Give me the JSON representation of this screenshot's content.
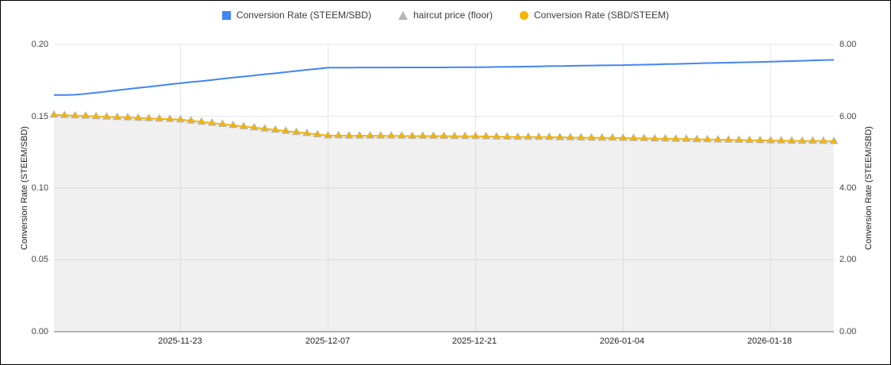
{
  "legend": {
    "items": [
      {
        "label": "Conversion Rate (STEEM/SBD)",
        "marker": "square-icon",
        "color": "#4285f4"
      },
      {
        "label": "haircut price (floor)",
        "marker": "triangle-icon",
        "color": "#b5b5b5"
      },
      {
        "label": "Conversion Rate (SBD/STEEM)",
        "marker": "circle-icon",
        "color": "#f4b400"
      }
    ]
  },
  "axes": {
    "left": {
      "title": "Conversion Rate (STEEM/SBD)",
      "ticks": [
        "0.20",
        "0.15",
        "0.10",
        "0.05",
        "0.00"
      ]
    },
    "right": {
      "title": "Conversion Rate (STEEM/SBD)",
      "ticks": [
        "8.00",
        "6.00",
        "4.00",
        "2.00",
        "0.00"
      ]
    },
    "x": {
      "ticks": [
        "2025-11-23",
        "2025-12-07",
        "2025-12-21",
        "2026-01-04",
        "2026-01-18"
      ]
    }
  },
  "colors": {
    "gridline": "#e6e6e6",
    "baseline": "#9e9e9e",
    "area_fill": "rgba(180,180,180,0.20)",
    "blue": "#4285f4",
    "gray": "#b5b5b5",
    "yellow": "#f4b400",
    "plot_bg": "#ffffff"
  },
  "chart_data": {
    "type": "line",
    "title": "",
    "xlabel": "",
    "legend_position": "top",
    "grid": true,
    "left_ylim": [
      0,
      0.2
    ],
    "right_ylim": [
      0,
      8.0
    ],
    "x_gridline_dates": [
      "2025-11-23",
      "2025-12-07",
      "2025-12-21",
      "2026-01-04",
      "2026-01-18"
    ],
    "x": [
      "2025-11-11",
      "2025-11-12",
      "2025-11-13",
      "2025-11-14",
      "2025-11-15",
      "2025-11-16",
      "2025-11-17",
      "2025-11-18",
      "2025-11-19",
      "2025-11-20",
      "2025-11-21",
      "2025-11-22",
      "2025-11-23",
      "2025-11-24",
      "2025-11-25",
      "2025-11-26",
      "2025-11-27",
      "2025-11-28",
      "2025-11-29",
      "2025-11-30",
      "2025-12-01",
      "2025-12-02",
      "2025-12-03",
      "2025-12-04",
      "2025-12-05",
      "2025-12-06",
      "2025-12-07",
      "2025-12-08",
      "2025-12-09",
      "2025-12-10",
      "2025-12-11",
      "2025-12-12",
      "2025-12-13",
      "2025-12-14",
      "2025-12-15",
      "2025-12-16",
      "2025-12-17",
      "2025-12-18",
      "2025-12-19",
      "2025-12-20",
      "2025-12-21",
      "2025-12-22",
      "2025-12-23",
      "2025-12-24",
      "2025-12-25",
      "2025-12-26",
      "2025-12-27",
      "2025-12-28",
      "2025-12-29",
      "2025-12-30",
      "2025-12-31",
      "2026-01-01",
      "2026-01-02",
      "2026-01-03",
      "2026-01-04",
      "2026-01-05",
      "2026-01-06",
      "2026-01-07",
      "2026-01-08",
      "2026-01-09",
      "2026-01-10",
      "2026-01-11",
      "2026-01-12",
      "2026-01-13",
      "2026-01-14",
      "2026-01-15",
      "2026-01-16",
      "2026-01-17",
      "2026-01-18",
      "2026-01-19",
      "2026-01-20",
      "2026-01-21",
      "2026-01-22",
      "2026-01-23",
      "2026-01-24"
    ],
    "series": [
      {
        "name": "Conversion Rate (STEEM/SBD)",
        "axis": "left",
        "color": "#4285f4",
        "style": "line",
        "values": [
          0.1648,
          0.1648,
          0.165,
          0.1656,
          0.1664,
          0.1672,
          0.1681,
          0.1689,
          0.1697,
          0.1705,
          0.1713,
          0.1722,
          0.173,
          0.1738,
          0.1745,
          0.1753,
          0.1761,
          0.1769,
          0.1776,
          0.1784,
          0.1792,
          0.1799,
          0.1807,
          0.1815,
          0.1823,
          0.183,
          0.1838,
          0.1838,
          0.1838,
          0.1839,
          0.1839,
          0.1839,
          0.1839,
          0.184,
          0.184,
          0.184,
          0.184,
          0.184,
          0.1841,
          0.1841,
          0.1841,
          0.1842,
          0.1843,
          0.1844,
          0.1845,
          0.1846,
          0.1847,
          0.1849,
          0.185,
          0.1851,
          0.1852,
          0.1853,
          0.1854,
          0.1855,
          0.1856,
          0.1858,
          0.1859,
          0.1861,
          0.1863,
          0.1864,
          0.1866,
          0.1868,
          0.187,
          0.1871,
          0.1873,
          0.1875,
          0.1876,
          0.1878,
          0.188,
          0.1882,
          0.1884,
          0.1886,
          0.1889,
          0.1891,
          0.1893
        ]
      },
      {
        "name": "haircut price (floor)",
        "axis": "left",
        "color": "#b5b5b5",
        "style": "area-triangle",
        "values": [
          0.151,
          0.1507,
          0.1504,
          0.1502,
          0.1499,
          0.1496,
          0.1493,
          0.1491,
          0.1488,
          0.1485,
          0.1482,
          0.148,
          0.1477,
          0.1469,
          0.1461,
          0.1453,
          0.1445,
          0.1437,
          0.1429,
          0.1421,
          0.1413,
          0.1405,
          0.1397,
          0.1389,
          0.1381,
          0.1373,
          0.1365,
          0.1365,
          0.1364,
          0.1364,
          0.1364,
          0.1363,
          0.1363,
          0.1363,
          0.1362,
          0.1362,
          0.1362,
          0.1362,
          0.1361,
          0.1361,
          0.136,
          0.1359,
          0.1358,
          0.1357,
          0.1356,
          0.1356,
          0.1355,
          0.1354,
          0.1353,
          0.1352,
          0.1351,
          0.135,
          0.1349,
          0.1349,
          0.1348,
          0.1347,
          0.1346,
          0.1344,
          0.1343,
          0.1342,
          0.1341,
          0.1339,
          0.1338,
          0.1337,
          0.1336,
          0.1334,
          0.1333,
          0.1332,
          0.1331,
          0.133,
          0.1329,
          0.1328,
          0.1328,
          0.1327,
          0.1326
        ]
      },
      {
        "name": "Conversion Rate (SBD/STEEM)",
        "axis": "right",
        "color": "#f4b400",
        "style": "line-circle",
        "values": [
          6.04,
          6.028,
          6.016,
          6.008,
          5.996,
          5.984,
          5.972,
          5.964,
          5.952,
          5.94,
          5.928,
          5.92,
          5.908,
          5.876,
          5.844,
          5.812,
          5.78,
          5.748,
          5.716,
          5.684,
          5.652,
          5.62,
          5.588,
          5.556,
          5.524,
          5.492,
          5.46,
          5.46,
          5.456,
          5.456,
          5.456,
          5.452,
          5.452,
          5.452,
          5.448,
          5.448,
          5.448,
          5.448,
          5.444,
          5.444,
          5.44,
          5.436,
          5.432,
          5.428,
          5.424,
          5.424,
          5.42,
          5.416,
          5.412,
          5.408,
          5.404,
          5.4,
          5.396,
          5.396,
          5.392,
          5.388,
          5.384,
          5.376,
          5.372,
          5.368,
          5.364,
          5.356,
          5.352,
          5.348,
          5.344,
          5.336,
          5.332,
          5.328,
          5.324,
          5.32,
          5.316,
          5.312,
          5.312,
          5.308,
          5.304
        ]
      }
    ]
  }
}
